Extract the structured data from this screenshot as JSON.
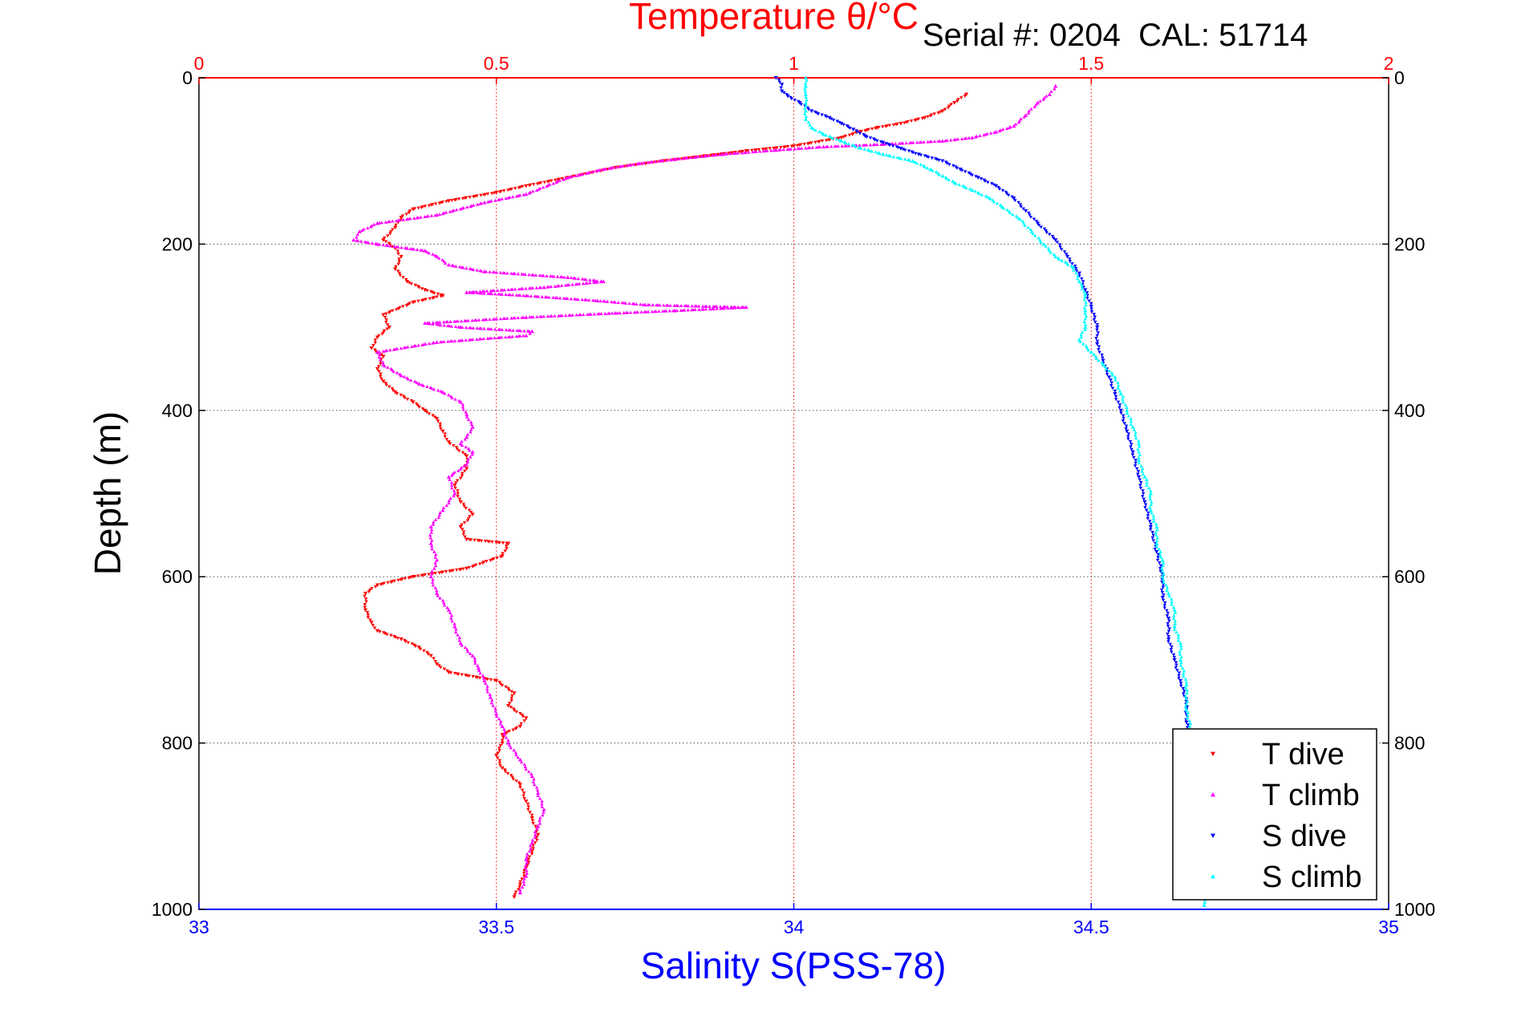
{
  "chart_data": {
    "type": "scatter",
    "title": "Temperature θ/°C",
    "annotation": "Serial #: 0204  CAL: 51714",
    "xlabel_top": "Temperature θ/°C",
    "xlabel_bottom": "Salinity S(PSS-78)",
    "ylabel": "Depth (m)",
    "x_top_lim": [
      0,
      2
    ],
    "x_top_ticks": [
      "0",
      "0.5",
      "1",
      "1.5",
      "2"
    ],
    "x_bottom_lim": [
      33,
      35
    ],
    "x_bottom_ticks": [
      "33",
      "33.5",
      "34",
      "34.5",
      "35"
    ],
    "ylim": [
      0,
      1000
    ],
    "y_ticks": [
      "0",
      "200",
      "400",
      "600",
      "800",
      "1000"
    ],
    "y_inverted": true,
    "grid": true,
    "legend_position": "bottom-right",
    "colors": {
      "temperature_axis": "#ff0000",
      "salinity_axis": "#0000ff",
      "grid": "#555555"
    },
    "series": [
      {
        "name": "T dive",
        "axis": "temperature",
        "color": "#ff0000",
        "marker": "triangle-down",
        "points": [
          [
            1.29,
            20
          ],
          [
            1.27,
            30
          ],
          [
            1.25,
            40
          ],
          [
            1.22,
            48
          ],
          [
            1.18,
            55
          ],
          [
            1.14,
            60
          ],
          [
            1.11,
            65
          ],
          [
            1.08,
            72
          ],
          [
            1.0,
            82
          ],
          [
            0.92,
            88
          ],
          [
            0.85,
            94
          ],
          [
            0.78,
            100
          ],
          [
            0.7,
            108
          ],
          [
            0.62,
            120
          ],
          [
            0.55,
            130
          ],
          [
            0.5,
            138
          ],
          [
            0.42,
            148
          ],
          [
            0.36,
            158
          ],
          [
            0.34,
            168
          ],
          [
            0.33,
            180
          ],
          [
            0.31,
            195
          ],
          [
            0.33,
            205
          ],
          [
            0.34,
            215
          ],
          [
            0.33,
            230
          ],
          [
            0.35,
            245
          ],
          [
            0.38,
            255
          ],
          [
            0.41,
            262
          ],
          [
            0.36,
            270
          ],
          [
            0.31,
            285
          ],
          [
            0.32,
            300
          ],
          [
            0.3,
            312
          ],
          [
            0.29,
            325
          ],
          [
            0.31,
            335
          ],
          [
            0.3,
            350
          ],
          [
            0.31,
            365
          ],
          [
            0.33,
            378
          ],
          [
            0.36,
            390
          ],
          [
            0.38,
            400
          ],
          [
            0.4,
            410
          ],
          [
            0.41,
            425
          ],
          [
            0.42,
            438
          ],
          [
            0.45,
            455
          ],
          [
            0.45,
            470
          ],
          [
            0.43,
            490
          ],
          [
            0.44,
            510
          ],
          [
            0.46,
            525
          ],
          [
            0.44,
            540
          ],
          [
            0.45,
            555
          ],
          [
            0.52,
            560
          ],
          [
            0.51,
            575
          ],
          [
            0.45,
            590
          ],
          [
            0.36,
            600
          ],
          [
            0.3,
            610
          ],
          [
            0.28,
            620
          ],
          [
            0.28,
            640
          ],
          [
            0.29,
            655
          ],
          [
            0.3,
            665
          ],
          [
            0.34,
            675
          ],
          [
            0.37,
            685
          ],
          [
            0.39,
            695
          ],
          [
            0.4,
            705
          ],
          [
            0.42,
            715
          ],
          [
            0.5,
            725
          ],
          [
            0.53,
            740
          ],
          [
            0.52,
            755
          ],
          [
            0.55,
            770
          ],
          [
            0.54,
            780
          ],
          [
            0.51,
            790
          ],
          [
            0.51,
            800
          ],
          [
            0.5,
            815
          ],
          [
            0.51,
            830
          ],
          [
            0.54,
            850
          ],
          [
            0.55,
            870
          ],
          [
            0.56,
            890
          ],
          [
            0.57,
            910
          ],
          [
            0.56,
            930
          ],
          [
            0.55,
            950
          ],
          [
            0.54,
            970
          ],
          [
            0.53,
            985
          ]
        ]
      },
      {
        "name": "T climb",
        "axis": "temperature",
        "color": "#ff00ff",
        "marker": "triangle-up",
        "points": [
          [
            1.44,
            10
          ],
          [
            1.43,
            20
          ],
          [
            1.41,
            30
          ],
          [
            1.39,
            45
          ],
          [
            1.37,
            58
          ],
          [
            1.34,
            65
          ],
          [
            1.3,
            72
          ],
          [
            1.25,
            76
          ],
          [
            1.15,
            80
          ],
          [
            1.05,
            83
          ],
          [
            0.97,
            87
          ],
          [
            0.88,
            92
          ],
          [
            0.8,
            98
          ],
          [
            0.74,
            103
          ],
          [
            0.68,
            110
          ],
          [
            0.62,
            120
          ],
          [
            0.55,
            140
          ],
          [
            0.48,
            150
          ],
          [
            0.4,
            165
          ],
          [
            0.3,
            175
          ],
          [
            0.27,
            185
          ],
          [
            0.26,
            195
          ],
          [
            0.3,
            200
          ],
          [
            0.35,
            205
          ],
          [
            0.38,
            208
          ],
          [
            0.4,
            215
          ],
          [
            0.42,
            225
          ],
          [
            0.48,
            233
          ],
          [
            0.62,
            240
          ],
          [
            0.68,
            245
          ],
          [
            0.58,
            252
          ],
          [
            0.45,
            258
          ],
          [
            0.55,
            262
          ],
          [
            0.67,
            268
          ],
          [
            0.75,
            273
          ],
          [
            0.92,
            276
          ],
          [
            0.8,
            280
          ],
          [
            0.7,
            283
          ],
          [
            0.55,
            288
          ],
          [
            0.38,
            295
          ],
          [
            0.44,
            300
          ],
          [
            0.56,
            305
          ],
          [
            0.55,
            310
          ],
          [
            0.4,
            318
          ],
          [
            0.3,
            330
          ],
          [
            0.31,
            345
          ],
          [
            0.34,
            358
          ],
          [
            0.37,
            368
          ],
          [
            0.41,
            378
          ],
          [
            0.44,
            390
          ],
          [
            0.45,
            405
          ],
          [
            0.46,
            420
          ],
          [
            0.45,
            432
          ],
          [
            0.44,
            440
          ],
          [
            0.46,
            450
          ],
          [
            0.45,
            465
          ],
          [
            0.42,
            480
          ],
          [
            0.43,
            500
          ],
          [
            0.41,
            520
          ],
          [
            0.39,
            540
          ],
          [
            0.39,
            560
          ],
          [
            0.4,
            580
          ],
          [
            0.39,
            600
          ],
          [
            0.4,
            620
          ],
          [
            0.42,
            640
          ],
          [
            0.43,
            660
          ],
          [
            0.44,
            680
          ],
          [
            0.46,
            695
          ],
          [
            0.47,
            710
          ],
          [
            0.48,
            725
          ],
          [
            0.49,
            745
          ],
          [
            0.5,
            765
          ],
          [
            0.51,
            780
          ],
          [
            0.52,
            800
          ],
          [
            0.54,
            820
          ],
          [
            0.56,
            840
          ],
          [
            0.57,
            860
          ],
          [
            0.58,
            880
          ],
          [
            0.57,
            900
          ],
          [
            0.56,
            920
          ],
          [
            0.55,
            940
          ],
          [
            0.55,
            960
          ],
          [
            0.54,
            980
          ]
        ]
      },
      {
        "name": "S dive",
        "axis": "salinity",
        "color": "#0000ff",
        "marker": "triangle-down",
        "points": [
          [
            33.97,
            0
          ],
          [
            33.98,
            8
          ],
          [
            33.98,
            16
          ],
          [
            33.99,
            22
          ],
          [
            34.01,
            30
          ],
          [
            34.03,
            40
          ],
          [
            34.06,
            48
          ],
          [
            34.08,
            55
          ],
          [
            34.1,
            62
          ],
          [
            34.12,
            70
          ],
          [
            34.15,
            78
          ],
          [
            34.18,
            85
          ],
          [
            34.21,
            92
          ],
          [
            34.25,
            100
          ],
          [
            34.28,
            110
          ],
          [
            34.31,
            120
          ],
          [
            34.34,
            130
          ],
          [
            34.37,
            145
          ],
          [
            34.39,
            160
          ],
          [
            34.41,
            175
          ],
          [
            34.44,
            195
          ],
          [
            34.46,
            215
          ],
          [
            34.48,
            235
          ],
          [
            34.49,
            255
          ],
          [
            34.5,
            275
          ],
          [
            34.51,
            300
          ],
          [
            34.51,
            320
          ],
          [
            34.52,
            340
          ],
          [
            34.53,
            360
          ],
          [
            34.54,
            380
          ],
          [
            34.55,
            400
          ],
          [
            34.56,
            425
          ],
          [
            34.57,
            450
          ],
          [
            34.58,
            480
          ],
          [
            34.59,
            510
          ],
          [
            34.6,
            540
          ],
          [
            34.61,
            570
          ],
          [
            34.62,
            600
          ],
          [
            34.62,
            625
          ],
          [
            34.63,
            650
          ],
          [
            34.63,
            675
          ],
          [
            34.64,
            700
          ],
          [
            34.65,
            725
          ],
          [
            34.66,
            750
          ],
          [
            34.66,
            775
          ],
          [
            34.67,
            800
          ]
        ]
      },
      {
        "name": "S climb",
        "axis": "salinity",
        "color": "#00ffff",
        "marker": "triangle-up",
        "points": [
          [
            34.02,
            0
          ],
          [
            34.02,
            10
          ],
          [
            34.02,
            20
          ],
          [
            34.02,
            30
          ],
          [
            34.02,
            40
          ],
          [
            34.02,
            50
          ],
          [
            34.03,
            60
          ],
          [
            34.05,
            68
          ],
          [
            34.08,
            76
          ],
          [
            34.11,
            84
          ],
          [
            34.15,
            92
          ],
          [
            34.2,
            100
          ],
          [
            34.23,
            110
          ],
          [
            34.25,
            118
          ],
          [
            34.27,
            126
          ],
          [
            34.3,
            135
          ],
          [
            34.33,
            145
          ],
          [
            34.35,
            155
          ],
          [
            34.38,
            170
          ],
          [
            34.4,
            185
          ],
          [
            34.42,
            200
          ],
          [
            34.44,
            215
          ],
          [
            34.47,
            228
          ],
          [
            34.48,
            245
          ],
          [
            34.49,
            260
          ],
          [
            34.49,
            280
          ],
          [
            34.49,
            300
          ],
          [
            34.48,
            315
          ],
          [
            34.5,
            330
          ],
          [
            34.52,
            345
          ],
          [
            34.54,
            360
          ],
          [
            34.55,
            380
          ],
          [
            34.56,
            400
          ],
          [
            34.57,
            420
          ],
          [
            34.58,
            440
          ],
          [
            34.58,
            460
          ],
          [
            34.59,
            480
          ],
          [
            34.6,
            500
          ],
          [
            34.6,
            520
          ],
          [
            34.61,
            540
          ],
          [
            34.61,
            560
          ],
          [
            34.62,
            580
          ],
          [
            34.62,
            600
          ],
          [
            34.63,
            620
          ],
          [
            34.64,
            640
          ],
          [
            34.64,
            660
          ],
          [
            34.65,
            680
          ],
          [
            34.65,
            700
          ],
          [
            34.66,
            730
          ],
          [
            34.66,
            760
          ],
          [
            34.67,
            790
          ],
          [
            34.67,
            820
          ],
          [
            34.68,
            860
          ],
          [
            34.68,
            900
          ],
          [
            34.69,
            950
          ],
          [
            34.69,
            995
          ]
        ]
      }
    ]
  }
}
